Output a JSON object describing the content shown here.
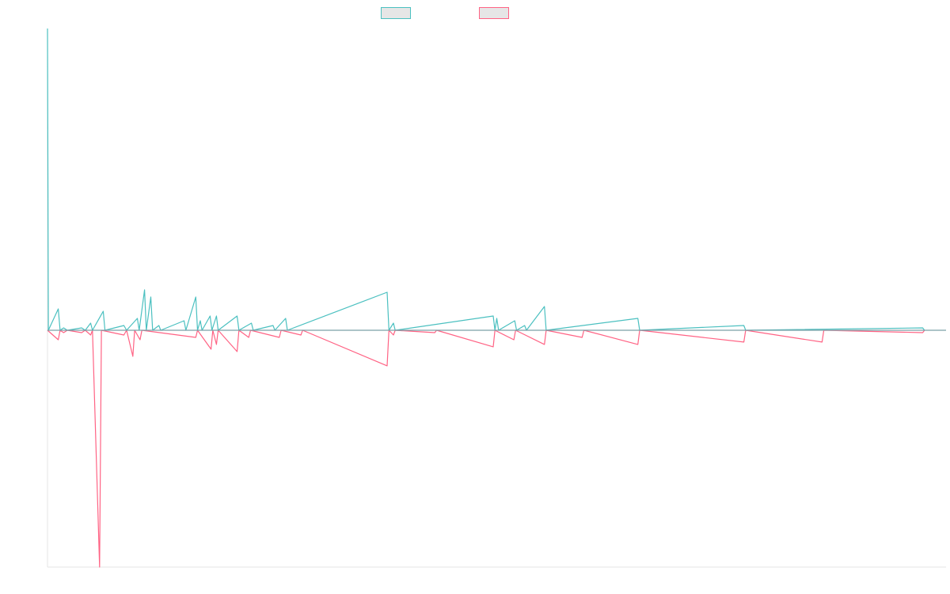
{
  "chart_data": {
    "type": "line",
    "title": "",
    "xlabel": "",
    "ylabel": "",
    "ylim": [
      -1,
      1.27
    ],
    "grid": false,
    "legend_placement": "top-center",
    "colors": {
      "series_a": "#4bc0c0",
      "series_b": "#ff6384",
      "axis": "#e5e5e5",
      "zero_line": "#7aa0a8"
    },
    "series": [
      {
        "name": "",
        "color": "#4bc0c0",
        "points": [
          [
            0,
            1.27
          ],
          [
            1,
            0
          ],
          [
            12,
            0.09
          ],
          [
            14,
            0
          ],
          [
            18,
            0.01
          ],
          [
            22,
            0
          ],
          [
            38,
            0.01
          ],
          [
            42,
            0
          ],
          [
            48,
            0.03
          ],
          [
            50,
            0
          ],
          [
            62,
            0.08
          ],
          [
            64,
            0
          ],
          [
            85,
            0.02
          ],
          [
            88,
            0
          ],
          [
            100,
            0.05
          ],
          [
            102,
            0
          ],
          [
            108,
            0.17
          ],
          [
            110,
            0
          ],
          [
            115,
            0.14
          ],
          [
            117,
            0
          ],
          [
            124,
            0.02
          ],
          [
            126,
            0
          ],
          [
            152,
            0.04
          ],
          [
            154,
            0
          ],
          [
            165,
            0.14
          ],
          [
            167,
            0
          ],
          [
            170,
            0.04
          ],
          [
            172,
            0
          ],
          [
            181,
            0.06
          ],
          [
            183,
            0
          ],
          [
            188,
            0.06
          ],
          [
            190,
            0
          ],
          [
            211,
            0.06
          ],
          [
            213,
            0
          ],
          [
            227,
            0.03
          ],
          [
            229,
            0
          ],
          [
            251,
            0.02
          ],
          [
            253,
            0
          ],
          [
            265,
            0.05
          ],
          [
            267,
            0
          ],
          [
            378,
            0.16
          ],
          [
            380,
            0
          ],
          [
            385,
            0.03
          ],
          [
            387,
            0
          ],
          [
            496,
            0.06
          ],
          [
            498,
            0
          ],
          [
            500,
            0.05
          ],
          [
            502,
            0
          ],
          [
            520,
            0.04
          ],
          [
            522,
            0
          ],
          [
            531,
            0.02
          ],
          [
            533,
            0
          ],
          [
            553,
            0.1
          ],
          [
            555,
            0
          ],
          [
            657,
            0.05
          ],
          [
            659,
            0
          ],
          [
            775,
            0.02
          ],
          [
            777,
            0
          ],
          [
            974,
            0.01
          ],
          [
            976,
            0
          ]
        ]
      },
      {
        "name": "",
        "color": "#ff6384",
        "points": [
          [
            0,
            0
          ],
          [
            12,
            -0.04
          ],
          [
            14,
            0
          ],
          [
            18,
            -0.01
          ],
          [
            22,
            0
          ],
          [
            38,
            -0.01
          ],
          [
            42,
            0
          ],
          [
            48,
            -0.02
          ],
          [
            50,
            0
          ],
          [
            58,
            -1
          ],
          [
            60,
            0
          ],
          [
            85,
            -0.02
          ],
          [
            88,
            0
          ],
          [
            95,
            -0.11
          ],
          [
            97,
            0
          ],
          [
            103,
            -0.04
          ],
          [
            105,
            0
          ],
          [
            165,
            -0.03
          ],
          [
            167,
            0
          ],
          [
            182,
            -0.08
          ],
          [
            184,
            0
          ],
          [
            188,
            -0.06
          ],
          [
            190,
            0
          ],
          [
            211,
            -0.09
          ],
          [
            213,
            0
          ],
          [
            224,
            -0.03
          ],
          [
            226,
            0
          ],
          [
            258,
            -0.03
          ],
          [
            260,
            0
          ],
          [
            282,
            -0.02
          ],
          [
            284,
            0
          ],
          [
            378,
            -0.15
          ],
          [
            380,
            0
          ],
          [
            385,
            -0.02
          ],
          [
            387,
            0
          ],
          [
            431,
            -0.01
          ],
          [
            433,
            0
          ],
          [
            496,
            -0.07
          ],
          [
            498,
            0
          ],
          [
            519,
            -0.04
          ],
          [
            521,
            0
          ],
          [
            553,
            -0.06
          ],
          [
            555,
            0
          ],
          [
            595,
            -0.03
          ],
          [
            597,
            0
          ],
          [
            657,
            -0.06
          ],
          [
            659,
            0
          ],
          [
            775,
            -0.05
          ],
          [
            777,
            0
          ],
          [
            862,
            -0.05
          ],
          [
            864,
            0
          ],
          [
            974,
            -0.01
          ],
          [
            976,
            0
          ]
        ]
      }
    ],
    "xlim": [
      0,
      1000
    ]
  }
}
